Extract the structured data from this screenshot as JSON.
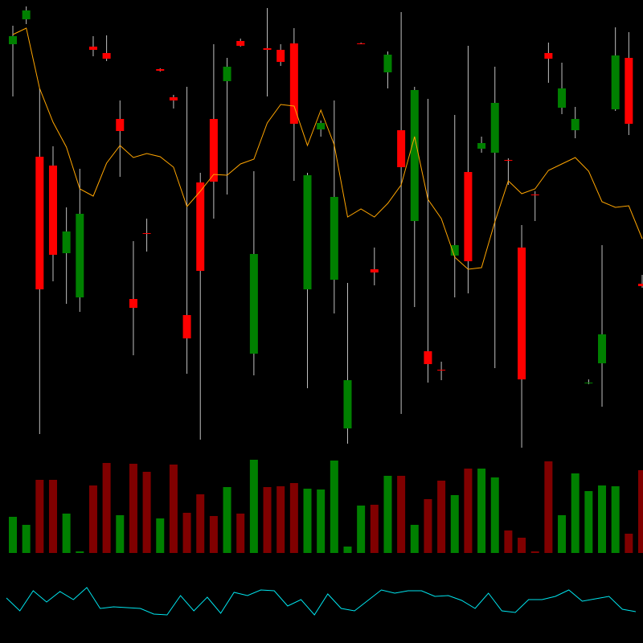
{
  "chart_data": [
    {
      "type": "candlestick",
      "ylim": [
        0,
        560
      ],
      "up_color": "#008000",
      "down_color": "#ff0000",
      "wick_color": "#c0c0c0",
      "open": [
        505,
        536,
        365,
        354,
        245,
        190,
        502,
        494,
        412,
        188,
        270,
        474,
        439,
        168,
        333,
        412,
        459,
        509,
        120,
        500,
        498,
        506,
        200,
        399,
        212,
        27,
        506,
        225,
        470,
        398,
        285,
        123,
        100,
        242,
        346,
        375,
        370,
        361,
        252,
        318,
        494,
        426,
        398,
        83,
        108,
        424,
        488,
        207
      ],
      "high": [
        528,
        552,
        450,
        378,
        302,
        350,
        515,
        516,
        435,
        260,
        288,
        475,
        442,
        452,
        345,
        505,
        488,
        512,
        347,
        550,
        505,
        525,
        345,
        410,
        435,
        208,
        507,
        252,
        496,
        545,
        452,
        437,
        110,
        417,
        503,
        390,
        477,
        363,
        280,
        322,
        507,
        482,
        427,
        88,
        255,
        526,
        520,
        218
      ],
      "low": [
        440,
        530,
        20,
        210,
        182,
        172,
        490,
        484,
        340,
        118,
        247,
        471,
        425,
        95,
        13,
        288,
        318,
        502,
        93,
        440,
        478,
        335,
        77,
        390,
        170,
        8,
        505,
        205,
        450,
        45,
        178,
        84,
        87,
        190,
        195,
        370,
        102,
        330,
        3,
        285,
        457,
        418,
        388,
        82,
        54,
        422,
        392,
        202
      ],
      "close": [
        515,
        547,
        200,
        243,
        272,
        294,
        498,
        487,
        397,
        177,
        269,
        472,
        435,
        139,
        223,
        334,
        477,
        503,
        244,
        498,
        483,
        406,
        342,
        407,
        315,
        87,
        505,
        221,
        492,
        352,
        448,
        107,
        99,
        255,
        235,
        382,
        432,
        360,
        88,
        317,
        487,
        450,
        412,
        84,
        144,
        491,
        406,
        204
      ],
      "overlay": {
        "type": "line",
        "color": "#ffa500",
        "values": [
          517,
          525,
          450,
          408,
          377,
          325,
          316,
          357,
          379,
          364,
          369,
          365,
          352,
          303,
          322,
          343,
          342,
          356,
          362,
          407,
          430,
          428,
          379,
          423,
          380,
          290,
          300,
          290,
          307,
          330,
          390,
          312,
          288,
          240,
          225,
          227,
          284,
          335,
          319,
          325,
          348,
          356,
          364,
          347,
          309,
          302,
          304,
          263
        ]
      }
    },
    {
      "type": "bar",
      "ylim": [
        0,
        120
      ],
      "values": [
        45,
        35,
        91,
        91,
        49,
        2,
        84,
        112,
        47,
        111,
        101,
        43,
        110,
        50,
        73,
        46,
        82,
        49,
        116,
        82,
        83,
        87,
        80,
        79,
        115,
        8,
        59,
        60,
        96,
        96,
        35,
        67,
        90,
        72,
        105,
        105,
        94,
        28,
        19,
        2,
        114,
        47,
        99,
        77,
        84,
        83,
        24,
        103
      ],
      "colors": [
        "#008000",
        "#008000",
        "#800000",
        "#800000",
        "#008000",
        "#008000",
        "#800000",
        "#800000",
        "#008000",
        "#800000",
        "#800000",
        "#008000",
        "#800000",
        "#800000",
        "#800000",
        "#800000",
        "#008000",
        "#800000",
        "#008000",
        "#800000",
        "#800000",
        "#800000",
        "#008000",
        "#008000",
        "#008000",
        "#008000",
        "#008000",
        "#800000",
        "#008000",
        "#800000",
        "#008000",
        "#800000",
        "#800000",
        "#008000",
        "#800000",
        "#008000",
        "#008000",
        "#800000",
        "#800000",
        "#800000",
        "#800000",
        "#008000",
        "#008000",
        "#008000",
        "#008000",
        "#008000",
        "#800000",
        "#800000"
      ]
    },
    {
      "type": "line",
      "ylim": [
        0,
        80
      ],
      "color": "#00e5ee",
      "values": [
        56,
        40,
        65,
        51,
        64,
        54,
        69,
        43,
        45,
        44,
        43,
        36,
        35,
        59,
        40,
        57,
        37,
        63,
        59,
        66,
        65,
        46,
        54,
        35,
        61,
        43,
        40,
        53,
        66,
        62,
        65,
        65,
        58,
        59,
        53,
        43,
        62,
        40,
        38,
        54,
        54,
        58,
        66,
        52,
        55,
        58,
        42,
        39
      ]
    }
  ]
}
